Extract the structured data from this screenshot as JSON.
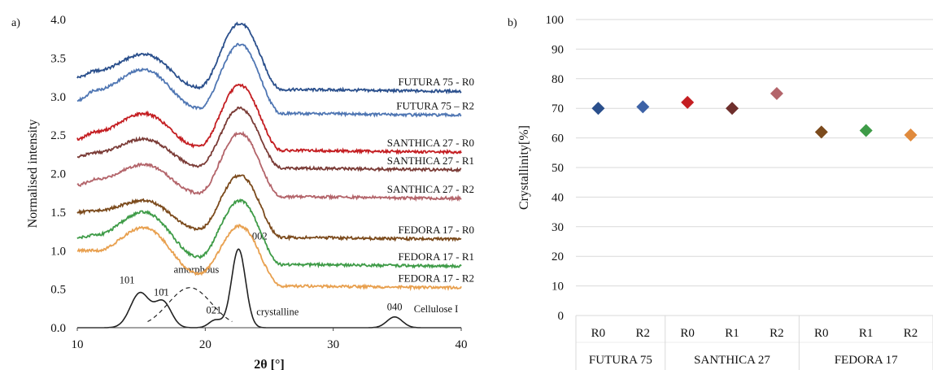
{
  "figure": {
    "panel_a": "a)",
    "panel_b": "b)"
  },
  "chart_data": [
    {
      "type": "line",
      "panel": "a)",
      "xlabel": "2θ [°]",
      "ylabel": "Normalised intensity",
      "xlim": [
        10,
        40
      ],
      "ylim": [
        0,
        4.0
      ],
      "x_ticks": [
        "10",
        "20",
        "30",
        "40"
      ],
      "y_ticks": [
        "0.0",
        "0.5",
        "1.0",
        "1.5",
        "2.0",
        "2.5",
        "3.0",
        "3.5",
        "4.0"
      ],
      "grid": false,
      "peak_x": [
        15.2,
        22.7
      ],
      "series": [
        {
          "name": "FUTURA 75 - R0",
          "color": "#2a4f8c",
          "start": 3.25,
          "valley": 3.22,
          "trough": 3.12,
          "end": 3.07,
          "low_peak": 3.55,
          "high_peak": 3.95
        },
        {
          "name": "FUTURA 75 – R2",
          "color": "#4f76b3",
          "start": 2.95,
          "valley": 2.95,
          "trough": 2.85,
          "end": 2.76,
          "low_peak": 3.35,
          "high_peak": 3.68
        },
        {
          "name": "SANTHICA 27 - R0",
          "color": "#c41e22",
          "start": 2.45,
          "valley": 2.42,
          "trough": 2.35,
          "end": 2.28,
          "low_peak": 2.78,
          "high_peak": 3.15
        },
        {
          "name": "SANTHICA 27 - R1",
          "color": "#7a3b36",
          "start": 2.22,
          "valley": 2.18,
          "trough": 2.1,
          "end": 2.05,
          "low_peak": 2.45,
          "high_peak": 2.85
        },
        {
          "name": "SANTHICA 27 - R2",
          "color": "#b3646a",
          "start": 1.85,
          "valley": 1.82,
          "trough": 1.75,
          "end": 1.68,
          "low_peak": 2.12,
          "high_peak": 2.53
        },
        {
          "name": "FEDORA 17 - R0",
          "color": "#7b4a1c",
          "start": 1.5,
          "valley": 1.45,
          "trough": 1.28,
          "end": 1.15,
          "low_peak": 1.65,
          "high_peak": 1.98
        },
        {
          "name": "FEDORA 17 - R1",
          "color": "#3e9b47",
          "start": 1.17,
          "valley": 1.05,
          "trough": 0.92,
          "end": 0.8,
          "low_peak": 1.5,
          "high_peak": 1.65
        },
        {
          "name": "FEDORA 17 - R2",
          "color": "#e8a04f",
          "start": 1.0,
          "valley": 0.84,
          "trough": 0.7,
          "end": 0.52,
          "low_peak": 1.3,
          "high_peak": 1.32
        }
      ],
      "reference": {
        "name": "Cellulose I",
        "peaks": [
          {
            "label": "101",
            "x": 14.9,
            "y": 0.45
          },
          {
            "label": "10̄1",
            "x": 16.7,
            "y": 0.33
          },
          {
            "label": "021",
            "x": 20.8,
            "y": 0.1
          },
          {
            "label": "002",
            "x": 22.6,
            "y": 1.02
          },
          {
            "label": "040",
            "x": 34.8,
            "y": 0.14
          }
        ],
        "amorphous": {
          "label": "amorphous",
          "x": 18.8,
          "y": 0.52
        },
        "crystalline_label": "crystalline"
      }
    },
    {
      "type": "scatter",
      "panel": "b)",
      "ylabel": "Crystallinity[%]",
      "ylim": [
        0,
        100
      ],
      "y_ticks": [
        "0",
        "10",
        "20",
        "30",
        "40",
        "50",
        "60",
        "70",
        "80",
        "90",
        "100"
      ],
      "grid": true,
      "groups": [
        {
          "name": "FUTURA 75",
          "categories": [
            "R0",
            "R2"
          ],
          "values": [
            70,
            70.5
          ],
          "colors": [
            "#2a4f8c",
            "#3d62a6"
          ]
        },
        {
          "name": "SANTHICA 27",
          "categories": [
            "R0",
            "R1",
            "R2"
          ],
          "values": [
            72,
            70,
            75
          ],
          "colors": [
            "#c41e22",
            "#6e2f2c",
            "#b3646a"
          ]
        },
        {
          "name": "FEDORA 17",
          "categories": [
            "R0",
            "R1",
            "R2"
          ],
          "values": [
            62,
            62.5,
            61
          ],
          "colors": [
            "#7b4a1c",
            "#3e9b47",
            "#e08a3c"
          ]
        }
      ]
    }
  ]
}
